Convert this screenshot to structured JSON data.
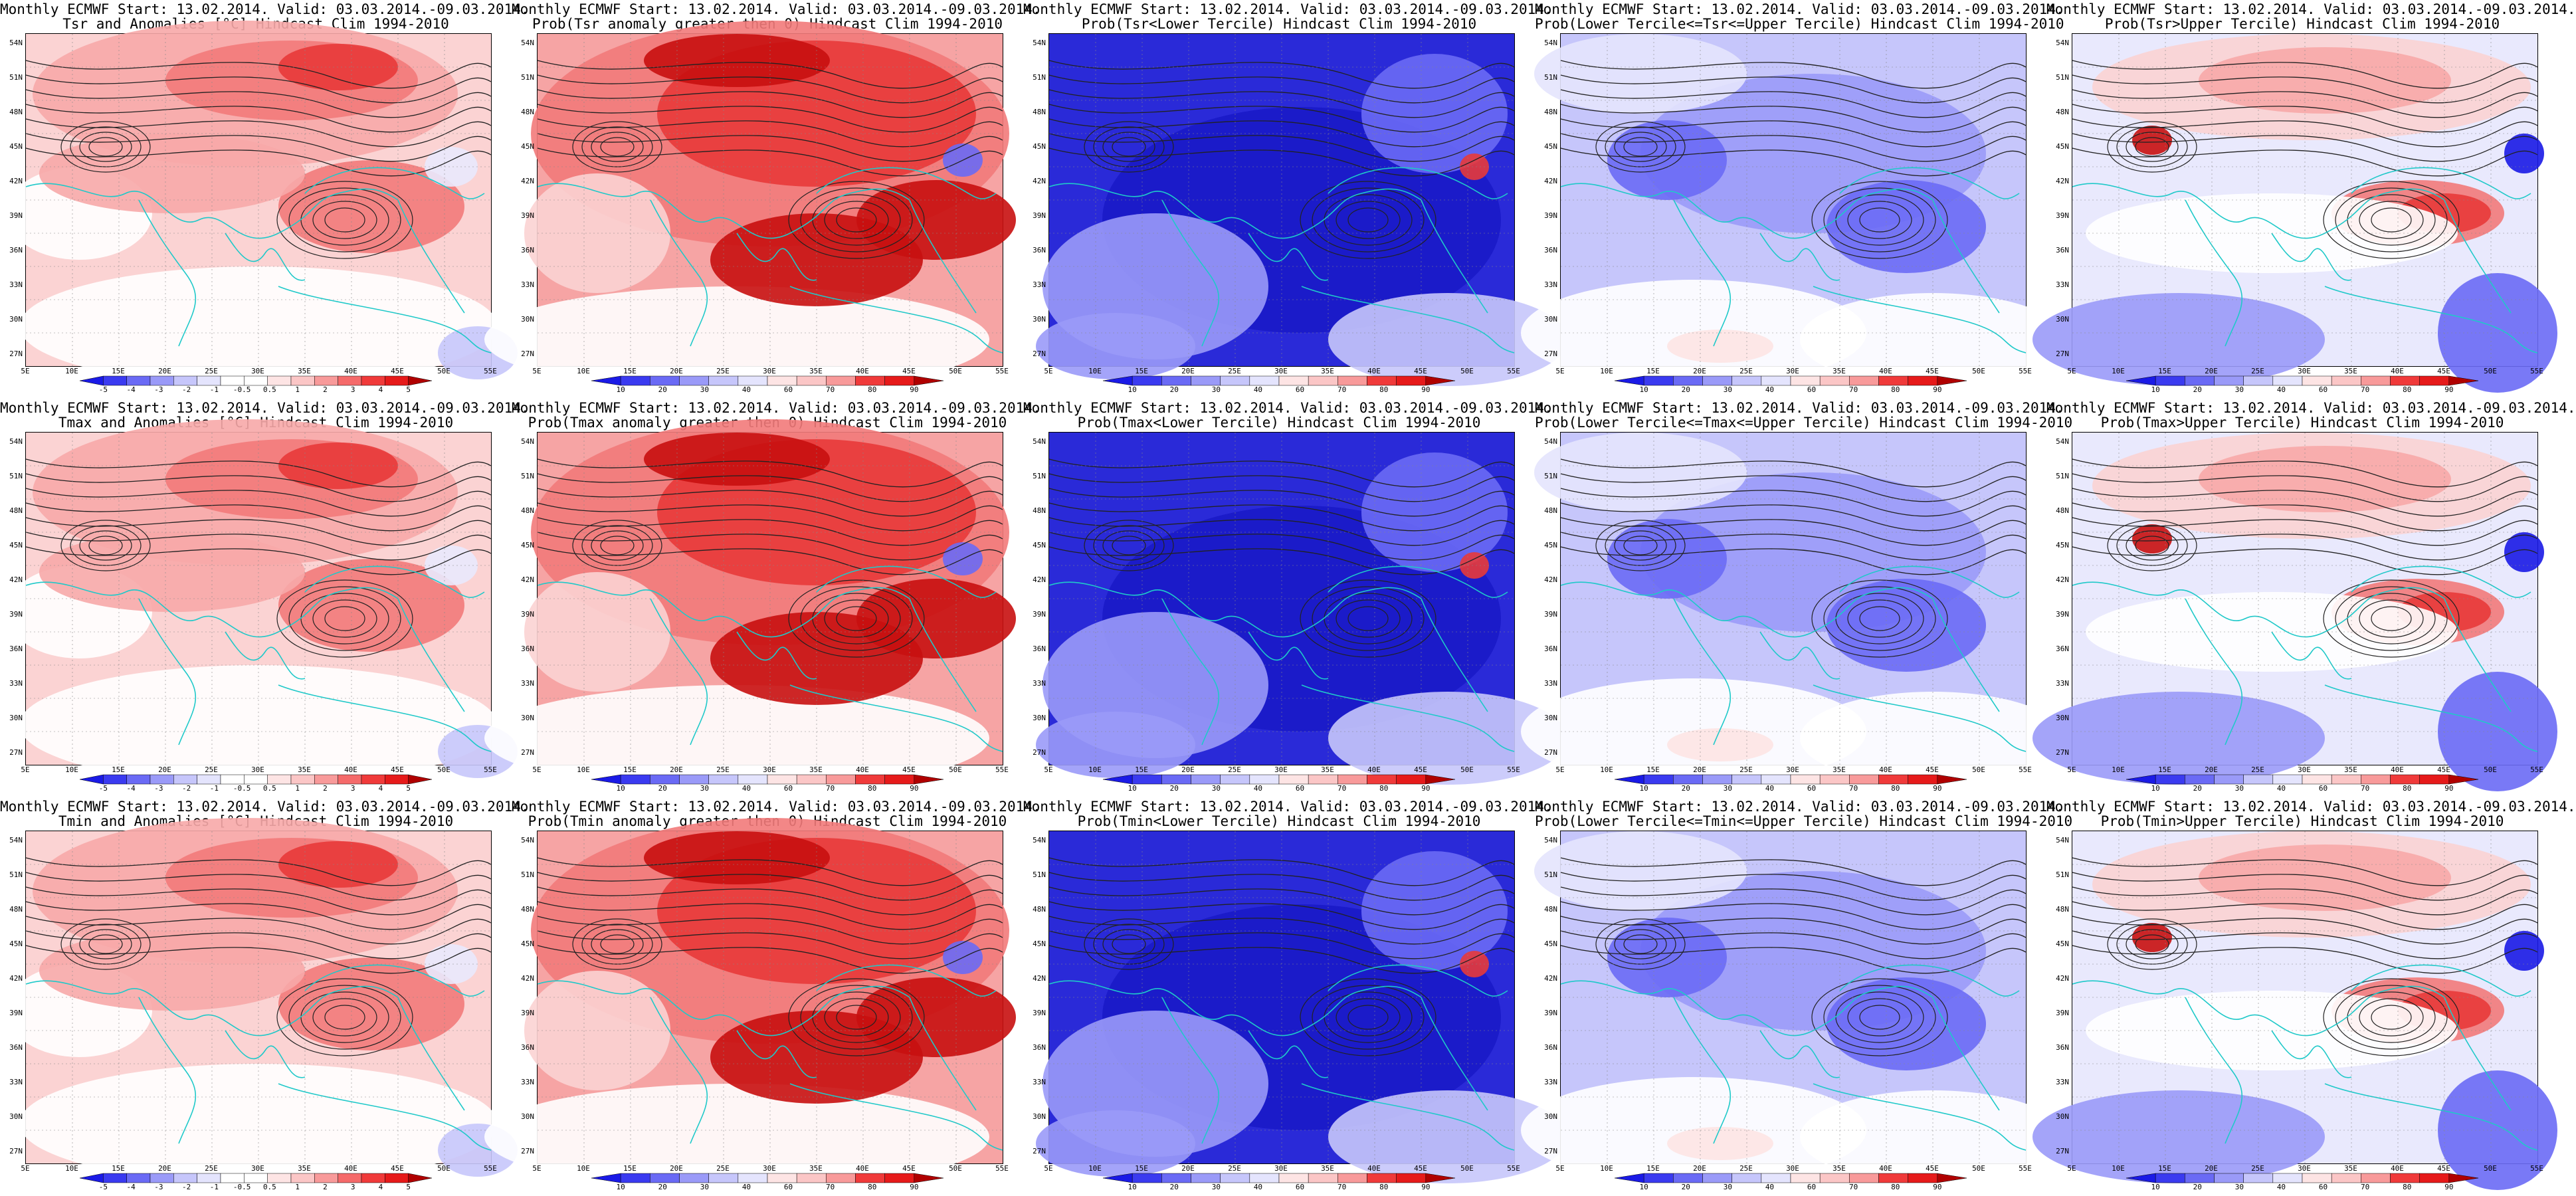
{
  "colorbar_colors": {
    "anomaly": [
      "#1a1ae6",
      "#3a3af0",
      "#6a6af5",
      "#9a9af8",
      "#c6c6fb",
      "#e4e4fd",
      "#ffffff",
      "#ffffff",
      "#fde4e4",
      "#fbc6c6",
      "#f89a9a",
      "#f56a6a",
      "#f03a3a",
      "#e61a1a",
      "#b00000"
    ],
    "probability": [
      "#1a1ae6",
      "#3a3af0",
      "#6a6af5",
      "#9a9af8",
      "#c6c6fb",
      "#e4e4fd",
      "#fde4e4",
      "#fbc6c6",
      "#f89a9a",
      "#f03a3a",
      "#e61a1a",
      "#b00000"
    ]
  },
  "colorbar_labels": {
    "anomaly": [
      "-5",
      "-4",
      "-3",
      "-2",
      "-1",
      "-0.5",
      "0.5",
      "1",
      "2",
      "3",
      "4",
      "5"
    ],
    "probability": [
      "10",
      "20",
      "30",
      "40",
      "60",
      "70",
      "80",
      "90"
    ]
  },
  "lat_labels": [
    "54N",
    "51N",
    "48N",
    "45N",
    "42N",
    "39N",
    "36N",
    "33N",
    "30N",
    "27N"
  ],
  "lon_labels": [
    "5E",
    "10E",
    "15E",
    "20E",
    "25E",
    "30E",
    "35E",
    "40E",
    "45E",
    "50E",
    "55E"
  ],
  "panels": [
    {
      "title_line1": "Monthly ECMWF Start: 13.02.2014. Valid: 03.03.2014.-09.03.2014.",
      "title_line2": "Tsr and Anomalies [°C] Hindcast Clim 1994-2010",
      "type": "anomaly",
      "theme": "warm_light"
    },
    {
      "title_line1": "Monthly ECMWF Start: 13.02.2014. Valid: 03.03.2014.-09.03.2014.",
      "title_line2": "Prob(Tsr anomaly greater then 0) Hindcast Clim 1994-2010",
      "type": "probability",
      "theme": "warm_strong"
    },
    {
      "title_line1": "Monthly ECMWF Start: 13.02.2014. Valid: 03.03.2014.-09.03.2014.",
      "title_line2": "Prob(Tsr<Lower Tercile) Hindcast Clim 1994-2010",
      "type": "probability",
      "theme": "cold_strong"
    },
    {
      "title_line1": "Monthly ECMWF Start: 13.02.2014. Valid: 03.03.2014.-09.03.2014.",
      "title_line2": "Prob(Lower Tercile<=Tsr<=Upper Tercile) Hindcast Clim 1994-2010",
      "type": "probability",
      "theme": "cold_light"
    },
    {
      "title_line1": "Monthly ECMWF Start: 13.02.2014. Valid: 03.03.2014.-09.03.2014.",
      "title_line2": "Prob(Tsr>Upper Tercile) Hindcast Clim 1994-2010",
      "type": "probability",
      "theme": "mixed"
    },
    {
      "title_line1": "Monthly ECMWF Start: 13.02.2014. Valid: 03.03.2014.-09.03.2014.",
      "title_line2": "Tmax and Anomalies [°C] Hindcast Clim 1994-2010",
      "type": "anomaly",
      "theme": "warm_light"
    },
    {
      "title_line1": "Monthly ECMWF Start: 13.02.2014. Valid: 03.03.2014.-09.03.2014.",
      "title_line2": "Prob(Tmax anomaly greater then 0) Hindcast Clim 1994-2010",
      "type": "probability",
      "theme": "warm_strong"
    },
    {
      "title_line1": "Monthly ECMWF Start: 13.02.2014. Valid: 03.03.2014.-09.03.2014.",
      "title_line2": "Prob(Tmax<Lower Tercile) Hindcast Clim 1994-2010",
      "type": "probability",
      "theme": "cold_strong"
    },
    {
      "title_line1": "Monthly ECMWF Start: 13.02.2014. Valid: 03.03.2014.-09.03.2014.",
      "title_line2": "Prob(Lower Tercile<=Tmax<=Upper Tercile) Hindcast Clim 1994-2010",
      "type": "probability",
      "theme": "cold_light"
    },
    {
      "title_line1": "Monthly ECMWF Start: 13.02.2014. Valid: 03.03.2014.-09.03.2014.",
      "title_line2": "Prob(Tmax>Upper Tercile) Hindcast Clim 1994-2010",
      "type": "probability",
      "theme": "mixed"
    },
    {
      "title_line1": "Monthly ECMWF Start: 13.02.2014. Valid: 03.03.2014.-09.03.2014.",
      "title_line2": "Tmin and Anomalies [°C] Hindcast Clim 1994-2010",
      "type": "anomaly",
      "theme": "warm_light"
    },
    {
      "title_line1": "Monthly ECMWF Start: 13.02.2014. Valid: 03.03.2014.-09.03.2014.",
      "title_line2": "Prob(Tmin anomaly greater then 0) Hindcast Clim 1994-2010",
      "type": "probability",
      "theme": "warm_strong"
    },
    {
      "title_line1": "Monthly ECMWF Start: 13.02.2014. Valid: 03.03.2014.-09.03.2014.",
      "title_line2": "Prob(Tmin<Lower Tercile) Hindcast Clim 1994-2010",
      "type": "probability",
      "theme": "cold_strong"
    },
    {
      "title_line1": "Monthly ECMWF Start: 13.02.2014. Valid: 03.03.2014.-09.03.2014.",
      "title_line2": "Prob(Lower Tercile<=Tmin<=Upper Tercile) Hindcast Clim 1994-2010",
      "type": "probability",
      "theme": "cold_light"
    },
    {
      "title_line1": "Monthly ECMWF Start: 13.02.2014. Valid: 03.03.2014.-09.03.2014.",
      "title_line2": "Prob(Tmin>Upper Tercile) Hindcast Clim 1994-2010",
      "type": "probability",
      "theme": "mixed"
    }
  ]
}
